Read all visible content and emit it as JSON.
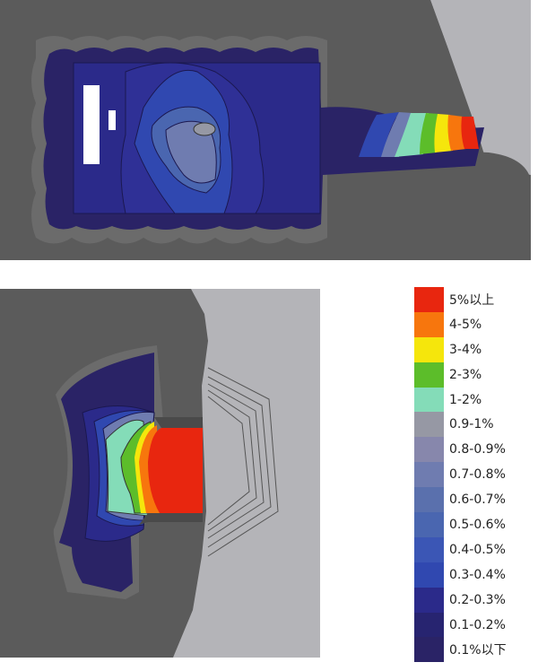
{
  "legend": {
    "items": [
      {
        "label": "5%以上",
        "color": "#e8260f"
      },
      {
        "label": "4-5%",
        "color": "#f7760d"
      },
      {
        "label": "3-4%",
        "color": "#f5e60c"
      },
      {
        "label": "2-3%",
        "color": "#5cbd2a"
      },
      {
        "label": "1-2%",
        "color": "#84dcb8"
      },
      {
        "label": "0.9-1%",
        "color": "#9698a4"
      },
      {
        "label": "0.8-0.9%",
        "color": "#8787ac"
      },
      {
        "label": "0.7-0.8%",
        "color": "#6f7cb0"
      },
      {
        "label": "0.6-0.7%",
        "color": "#5a70ad"
      },
      {
        "label": "0.5-0.6%",
        "color": "#4a66b0"
      },
      {
        "label": "0.4-0.5%",
        "color": "#3b56b5"
      },
      {
        "label": "0.3-0.4%",
        "color": "#3048b0"
      },
      {
        "label": "0.2-0.3%",
        "color": "#2b2a8a"
      },
      {
        "label": "0.1-0.2%",
        "color": "#272470"
      },
      {
        "label": "0.1%以下",
        "color": "#2a2366"
      }
    ]
  },
  "colors": {
    "rock_dark": "#5b5b5b",
    "rock_light": "#b4b4b8",
    "halo": "#6b6b6b"
  }
}
